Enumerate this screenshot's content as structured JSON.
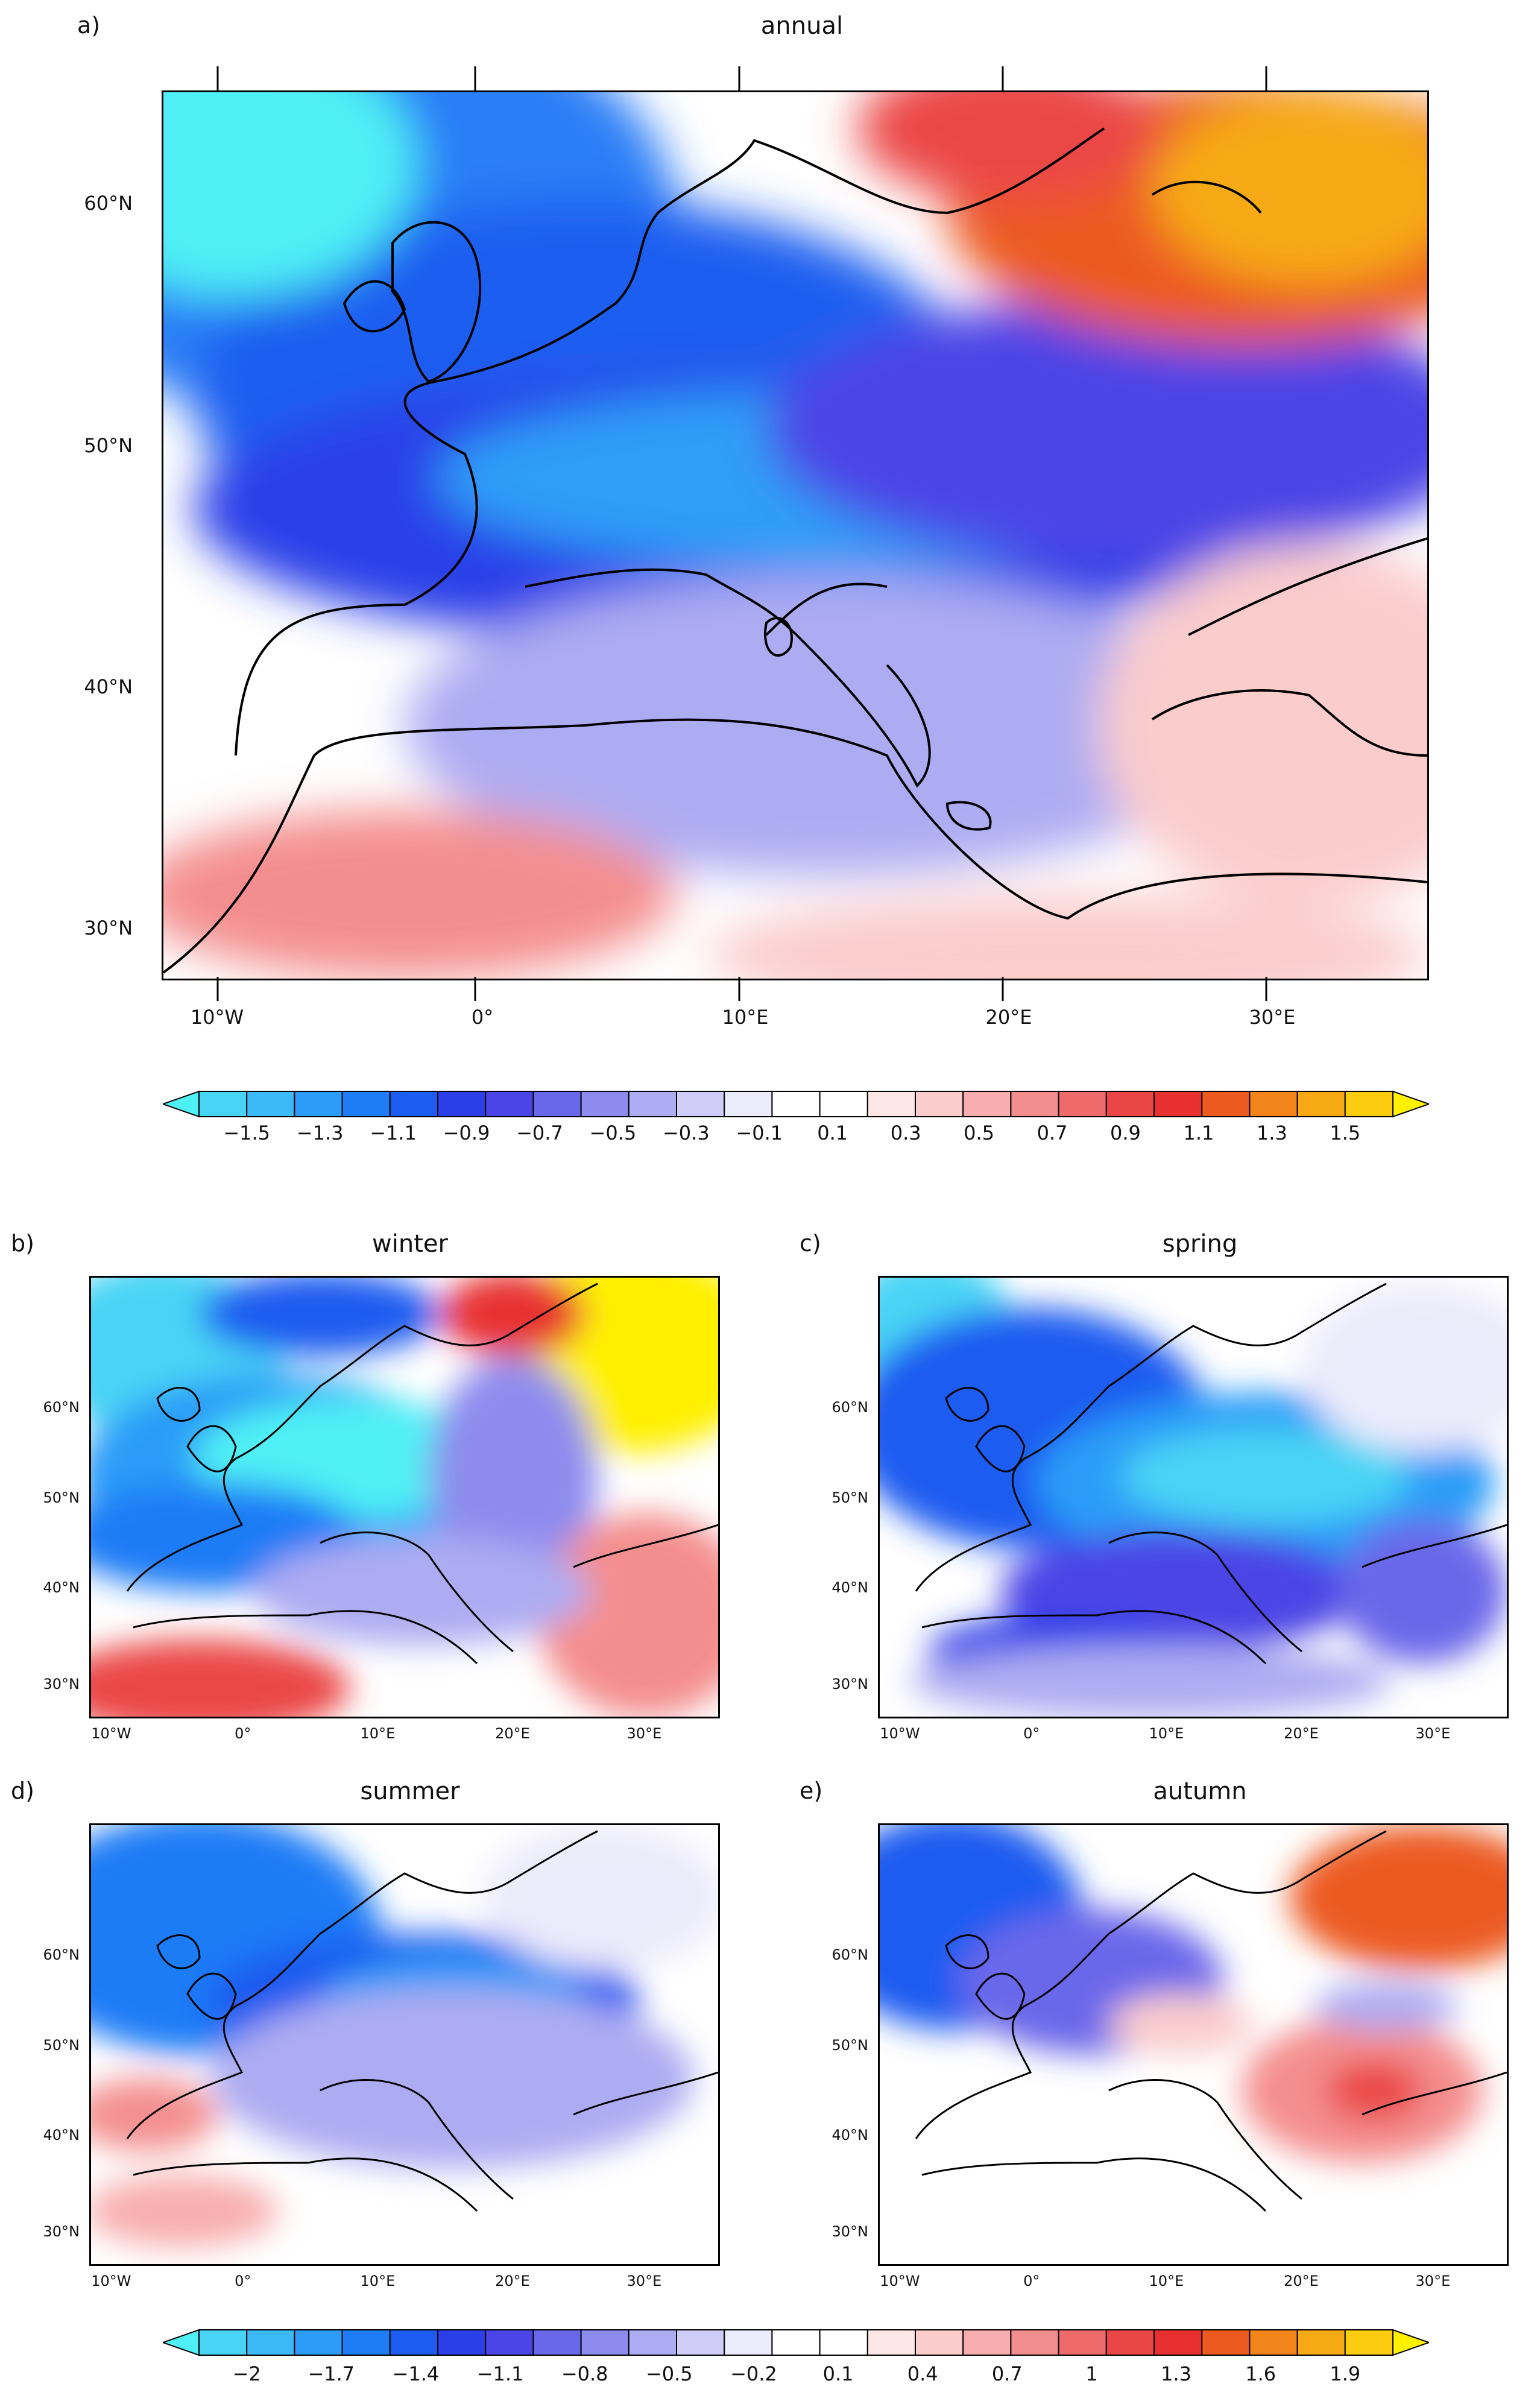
{
  "figure": {
    "lon_labels": [
      "10°W",
      "0°",
      "10°E",
      "20°E",
      "30°E"
    ],
    "lat_labels": [
      "30°N",
      "40°N",
      "50°N",
      "60°N"
    ]
  },
  "panels": [
    {
      "letter": "a)",
      "title": "annual"
    },
    {
      "letter": "b)",
      "title": "winter"
    },
    {
      "letter": "c)",
      "title": "spring"
    },
    {
      "letter": "d)",
      "title": "summer"
    },
    {
      "letter": "e)",
      "title": "autumn"
    }
  ],
  "colorbar_top": {
    "labels": [
      "−1.5",
      "−1.3",
      "−1.1",
      "−0.9",
      "−0.7",
      "−0.5",
      "−0.3",
      "−0.1",
      "0.1",
      "0.3",
      "0.5",
      "0.7",
      "0.9",
      "1.1",
      "1.3",
      "1.5"
    ]
  },
  "colorbar_bottom": {
    "labels": [
      "−2",
      "−1.7",
      "−1.4",
      "−1.1",
      "−0.8",
      "−0.5",
      "−0.2",
      "0.1",
      "0.4",
      "0.7",
      "1",
      "1.3",
      "1.6",
      "1.9"
    ]
  },
  "colors": {
    "palette": [
      "#4ff0f5",
      "#48d4f5",
      "#3cbaf7",
      "#2c9cf8",
      "#1e7cf6",
      "#1c5cf0",
      "#2a3fe8",
      "#4b44e6",
      "#6a68ea",
      "#8d8cee",
      "#adacf2",
      "#cfcdf7",
      "#ecebfb",
      "#ffffff",
      "#ffffff",
      "#fde6e6",
      "#fbcccc",
      "#f8aeae",
      "#f48e8e",
      "#ef6a6a",
      "#eb4646",
      "#e83030",
      "#ec5a20",
      "#f2841a",
      "#f7aa14",
      "#fbcd0e",
      "#fff000"
    ]
  }
}
